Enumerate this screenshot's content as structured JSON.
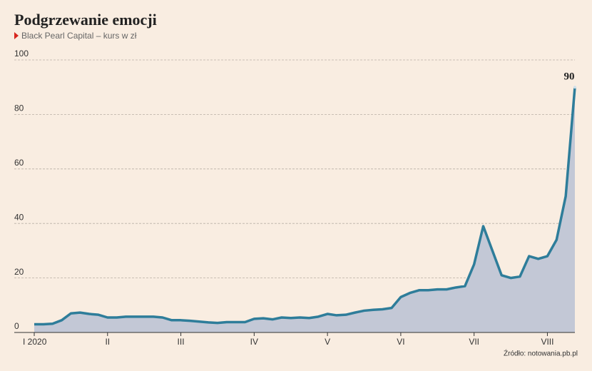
{
  "chart_data": {
    "type": "line",
    "title": "Podgrzewanie emocji",
    "subtitle": "Black Pearl Capital – kurs w zł",
    "source": "Źródło: notowania.pb.pl",
    "categories": [
      "I 2020",
      null,
      null,
      null,
      null,
      null,
      null,
      null,
      "II",
      null,
      null,
      null,
      null,
      null,
      null,
      null,
      "III",
      null,
      null,
      null,
      null,
      null,
      null,
      null,
      "IV",
      null,
      null,
      null,
      null,
      null,
      null,
      null,
      "V",
      null,
      null,
      null,
      null,
      null,
      null,
      null,
      "VI",
      null,
      null,
      null,
      null,
      null,
      null,
      null,
      "VII",
      null,
      null,
      null,
      null,
      null,
      null,
      null,
      "VIII",
      null,
      null,
      null
    ],
    "series": [
      {
        "name": "Black Pearl Capital",
        "color": "#2e7d9a",
        "values": [
          3,
          3,
          3.2,
          4.5,
          7,
          7.3,
          6.8,
          6.5,
          5.5,
          5.5,
          5.8,
          5.8,
          5.8,
          5.8,
          5.5,
          4.5,
          4.5,
          4.3,
          4,
          3.7,
          3.5,
          3.8,
          3.8,
          3.8,
          5,
          5.2,
          4.8,
          5.5,
          5.3,
          5.5,
          5.3,
          5.8,
          6.8,
          6.3,
          6.5,
          7.3,
          8,
          8.3,
          8.5,
          9,
          13,
          14.5,
          15.5,
          15.5,
          15.8,
          15.8,
          16.5,
          17,
          25,
          39,
          30,
          21,
          20,
          20.5,
          28,
          27,
          28,
          34,
          50,
          90
        ]
      }
    ],
    "area_color": "#c3c8d6",
    "ylim": [
      0,
      100
    ],
    "yticks": [
      0,
      20,
      40,
      60,
      80,
      100
    ],
    "grid": true
  }
}
